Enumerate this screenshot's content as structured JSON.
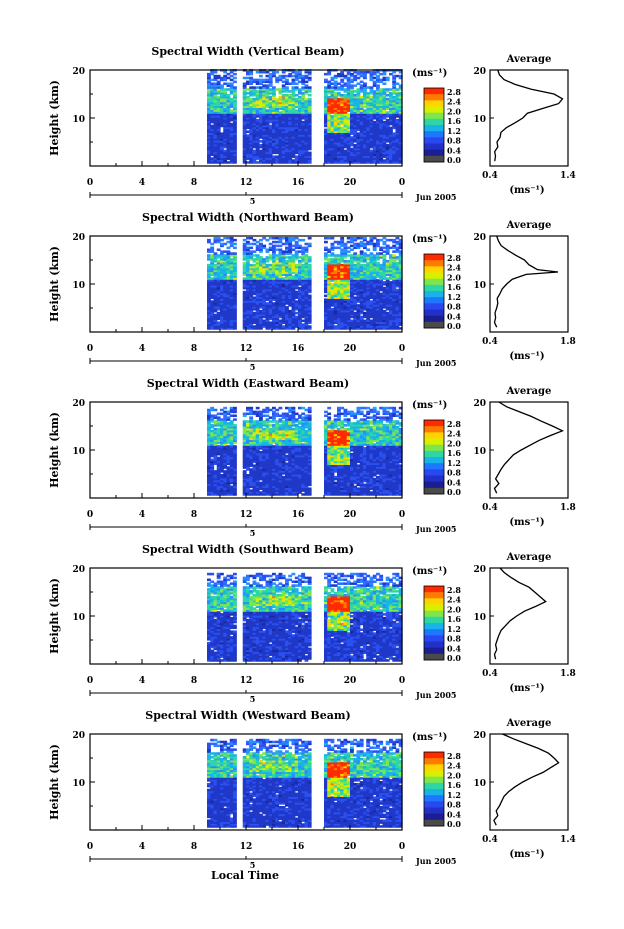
{
  "figure": {
    "x_axis_label": "Local Time",
    "date_label": "Jun 2005",
    "unit_label": "(ms⁻¹)",
    "average_label": "Average"
  },
  "colorbar": {
    "ticks": [
      "2.8",
      "2.4",
      "2.0",
      "1.6",
      "1.2",
      "0.8",
      "0.4",
      "0.0"
    ],
    "colors": [
      "#ff2a00",
      "#ff7a00",
      "#ffd200",
      "#d8f000",
      "#7de64a",
      "#2ed6a6",
      "#18b4e8",
      "#1e78ff",
      "#2a48f0",
      "#2030c8",
      "#1a1e90",
      "#4a4a4a"
    ]
  },
  "chart_data": [
    {
      "type": "heatmap",
      "title": "Spectral Width (Vertical Beam)",
      "ylabel": "Height (km)",
      "x_ticks": [
        "0",
        "4",
        "8",
        "12",
        "16",
        "20",
        "0"
      ],
      "y_ticks": [
        "20",
        "10"
      ],
      "xlim": [
        0,
        24
      ],
      "ylim": [
        0,
        20
      ],
      "date_marker": "5",
      "data_start_hour": 9,
      "gaps_hours": [
        [
          11.2,
          11.6
        ],
        [
          17.0,
          18.0
        ]
      ],
      "clear_below_km": 0,
      "top_km": 20,
      "avg": {
        "xlim": [
          0.4,
          1.4
        ],
        "x_ticks": [
          "0.4",
          "1.4"
        ],
        "y_ticks": [
          "20",
          "10"
        ],
        "xlabel": "(ms⁻¹)",
        "profile": [
          [
            0.46,
            1
          ],
          [
            0.47,
            2
          ],
          [
            0.46,
            3
          ],
          [
            0.5,
            4
          ],
          [
            0.49,
            5
          ],
          [
            0.53,
            6
          ],
          [
            0.54,
            7
          ],
          [
            0.61,
            8
          ],
          [
            0.72,
            9
          ],
          [
            0.82,
            10
          ],
          [
            0.88,
            11
          ],
          [
            1.08,
            12
          ],
          [
            1.28,
            13
          ],
          [
            1.33,
            14
          ],
          [
            1.22,
            15
          ],
          [
            0.93,
            16
          ],
          [
            0.72,
            17
          ],
          [
            0.58,
            18
          ],
          [
            0.52,
            19
          ],
          [
            0.5,
            20
          ]
        ]
      }
    },
    {
      "type": "heatmap",
      "title": "Spectral Width (Northward Beam)",
      "ylabel": "Height (km)",
      "x_ticks": [
        "0",
        "4",
        "8",
        "12",
        "16",
        "20",
        "0"
      ],
      "y_ticks": [
        "20",
        "10"
      ],
      "xlim": [
        0,
        24
      ],
      "ylim": [
        0,
        20
      ],
      "date_marker": "5",
      "data_start_hour": 9,
      "gaps_hours": [
        [
          11.2,
          11.6
        ],
        [
          17.0,
          18.0
        ]
      ],
      "clear_below_km": 0,
      "top_km": 19.5,
      "avg": {
        "xlim": [
          0.4,
          1.8
        ],
        "x_ticks": [
          "0.4",
          "1.8"
        ],
        "y_ticks": [
          "20",
          "10"
        ],
        "xlabel": "(ms⁻¹)",
        "profile": [
          [
            0.52,
            1
          ],
          [
            0.48,
            2
          ],
          [
            0.5,
            3
          ],
          [
            0.49,
            4
          ],
          [
            0.52,
            5
          ],
          [
            0.54,
            6
          ],
          [
            0.53,
            7
          ],
          [
            0.58,
            8
          ],
          [
            0.62,
            9
          ],
          [
            0.7,
            10
          ],
          [
            0.8,
            11
          ],
          [
            1.05,
            12
          ],
          [
            1.62,
            12.5
          ],
          [
            1.25,
            13
          ],
          [
            1.1,
            14
          ],
          [
            1.02,
            15
          ],
          [
            0.86,
            16
          ],
          [
            0.72,
            17
          ],
          [
            0.6,
            18
          ],
          [
            0.55,
            19
          ],
          [
            0.52,
            20
          ]
        ]
      }
    },
    {
      "type": "heatmap",
      "title": "Spectral Width (Eastward Beam)",
      "ylabel": "Height (km)",
      "x_ticks": [
        "0",
        "4",
        "8",
        "12",
        "16",
        "20",
        "0"
      ],
      "y_ticks": [
        "20",
        "10"
      ],
      "xlim": [
        0,
        24
      ],
      "ylim": [
        0,
        20
      ],
      "date_marker": "5",
      "data_start_hour": 9,
      "gaps_hours": [
        [
          11.2,
          11.6
        ],
        [
          17.0,
          18.0
        ]
      ],
      "clear_below_km": 0,
      "top_km": 19,
      "avg": {
        "xlim": [
          0.4,
          1.8
        ],
        "x_ticks": [
          "0.4",
          "1.8"
        ],
        "y_ticks": [
          "20",
          "10"
        ],
        "xlabel": "(ms⁻¹)",
        "profile": [
          [
            0.52,
            1
          ],
          [
            0.48,
            2
          ],
          [
            0.56,
            3
          ],
          [
            0.5,
            4
          ],
          [
            0.55,
            5
          ],
          [
            0.6,
            6
          ],
          [
            0.66,
            7
          ],
          [
            0.74,
            8
          ],
          [
            0.82,
            9
          ],
          [
            0.96,
            10
          ],
          [
            1.12,
            11
          ],
          [
            1.28,
            12
          ],
          [
            1.48,
            13
          ],
          [
            1.7,
            14
          ],
          [
            1.52,
            15
          ],
          [
            1.32,
            16
          ],
          [
            1.14,
            17
          ],
          [
            0.92,
            18
          ],
          [
            0.7,
            19
          ],
          [
            0.56,
            20
          ]
        ]
      }
    },
    {
      "type": "heatmap",
      "title": "Spectral Width (Southward Beam)",
      "ylabel": "Height (km)",
      "x_ticks": [
        "0",
        "4",
        "8",
        "12",
        "16",
        "20",
        "0"
      ],
      "y_ticks": [
        "20",
        "10"
      ],
      "xlim": [
        0,
        24
      ],
      "ylim": [
        0,
        20
      ],
      "date_marker": "5",
      "data_start_hour": 9,
      "gaps_hours": [
        [
          11.2,
          11.6
        ],
        [
          17.0,
          18.0
        ]
      ],
      "clear_below_km": 0,
      "top_km": 19,
      "avg": {
        "xlim": [
          0.4,
          1.8
        ],
        "x_ticks": [
          "0.4",
          "1.8"
        ],
        "y_ticks": [
          "20",
          "10"
        ],
        "xlabel": "(ms⁻¹)",
        "profile": [
          [
            0.5,
            1
          ],
          [
            0.48,
            2
          ],
          [
            0.52,
            3
          ],
          [
            0.5,
            4
          ],
          [
            0.53,
            5
          ],
          [
            0.56,
            6
          ],
          [
            0.6,
            7
          ],
          [
            0.68,
            8
          ],
          [
            0.76,
            9
          ],
          [
            0.88,
            10
          ],
          [
            1.02,
            11
          ],
          [
            1.22,
            12
          ],
          [
            1.4,
            13
          ],
          [
            1.3,
            14
          ],
          [
            1.2,
            15
          ],
          [
            1.1,
            16
          ],
          [
            0.92,
            17
          ],
          [
            0.78,
            18
          ],
          [
            0.66,
            19
          ],
          [
            0.58,
            20
          ]
        ]
      }
    },
    {
      "type": "heatmap",
      "title": "Spectral Width (Westward Beam)",
      "ylabel": "Height (km)",
      "x_ticks": [
        "0",
        "4",
        "8",
        "12",
        "16",
        "20",
        "0"
      ],
      "y_ticks": [
        "20",
        "10"
      ],
      "xlim": [
        0,
        24
      ],
      "ylim": [
        0,
        20
      ],
      "date_marker": "5",
      "data_start_hour": 9,
      "gaps_hours": [
        [
          11.2,
          11.6
        ],
        [
          17.0,
          18.0
        ]
      ],
      "clear_below_km": 0,
      "top_km": 19,
      "avg": {
        "xlim": [
          0.4,
          1.4
        ],
        "x_ticks": [
          "0.4",
          "1.4"
        ],
        "y_ticks": [
          "20",
          "10"
        ],
        "xlabel": "(ms⁻¹)",
        "profile": [
          [
            0.48,
            1
          ],
          [
            0.45,
            2
          ],
          [
            0.5,
            3
          ],
          [
            0.48,
            4
          ],
          [
            0.52,
            5
          ],
          [
            0.55,
            6
          ],
          [
            0.58,
            7
          ],
          [
            0.64,
            8
          ],
          [
            0.72,
            9
          ],
          [
            0.82,
            10
          ],
          [
            0.94,
            11
          ],
          [
            1.08,
            12
          ],
          [
            1.18,
            13
          ],
          [
            1.28,
            14
          ],
          [
            1.22,
            15
          ],
          [
            1.15,
            16
          ],
          [
            1.02,
            17
          ],
          [
            0.86,
            18
          ],
          [
            0.7,
            19
          ],
          [
            0.56,
            20
          ]
        ]
      }
    }
  ]
}
